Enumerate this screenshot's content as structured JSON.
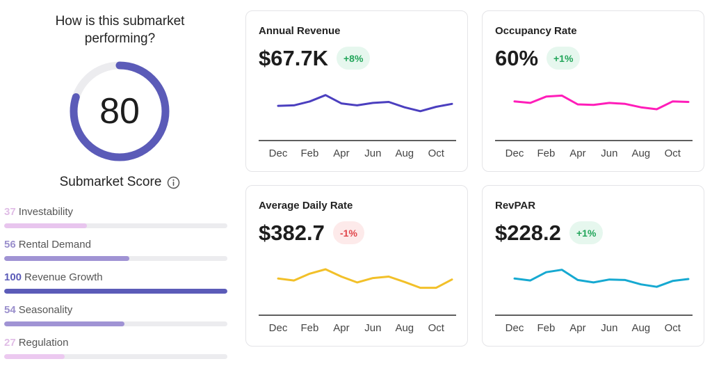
{
  "score_panel": {
    "question": "How is this submarket performing?",
    "score": 80,
    "score_max": 100,
    "score_color": "#5b5bb8",
    "label": "Submarket Score",
    "info_icon": "info-icon",
    "metrics": [
      {
        "value": "37",
        "label": "Investability",
        "fraction": 0.37,
        "color": "#e8c5ee",
        "num_color": "#e0bde6"
      },
      {
        "value": "56",
        "label": "Rental Demand",
        "fraction": 0.56,
        "color": "#a093d4",
        "num_color": "#9a8fcc"
      },
      {
        "value": "100",
        "label": "Revenue Growth",
        "fraction": 1.0,
        "color": "#5b5bb8",
        "num_color": "#5b5bb8"
      },
      {
        "value": "54",
        "label": "Seasonality",
        "fraction": 0.54,
        "color": "#a093d4",
        "num_color": "#9a8fcc"
      },
      {
        "value": "27",
        "label": "Regulation",
        "fraction": 0.27,
        "color": "#ecc9f0",
        "num_color": "#e0bde6"
      }
    ]
  },
  "cards": [
    {
      "title": "Annual Revenue",
      "value": "$67.7K",
      "change": "+8%",
      "trend": "positive",
      "chart_data": {
        "type": "line",
        "color": "#4b3fbf",
        "x_ticks": [
          "Dec",
          "Feb",
          "Apr",
          "Jun",
          "Aug",
          "Oct"
        ],
        "values": [
          57,
          58,
          66,
          79,
          62,
          58,
          63,
          65,
          54,
          46,
          55,
          61
        ],
        "ylim": [
          0,
          100
        ]
      }
    },
    {
      "title": "Occupancy Rate",
      "value": "60%",
      "change": "+1%",
      "trend": "positive",
      "chart_data": {
        "type": "line",
        "color": "#ff1db9",
        "x_ticks": [
          "Dec",
          "Feb",
          "Apr",
          "Jun",
          "Aug",
          "Oct"
        ],
        "values": [
          66,
          63,
          76,
          78,
          60,
          59,
          63,
          61,
          54,
          50,
          66,
          65
        ],
        "ylim": [
          0,
          100
        ]
      }
    },
    {
      "title": "Average Daily Rate",
      "value": "$382.7",
      "change": "-1%",
      "trend": "negative",
      "chart_data": {
        "type": "line",
        "color": "#f2c029",
        "x_ticks": [
          "Dec",
          "Feb",
          "Apr",
          "Jun",
          "Aug",
          "Oct"
        ],
        "values": [
          61,
          57,
          71,
          80,
          65,
          53,
          62,
          65,
          54,
          42,
          42,
          59
        ],
        "ylim": [
          0,
          100
        ]
      }
    },
    {
      "title": "RevPAR",
      "value": "$228.2",
      "change": "+1%",
      "trend": "positive",
      "chart_data": {
        "type": "line",
        "color": "#16a9d1",
        "x_ticks": [
          "Dec",
          "Feb",
          "Apr",
          "Jun",
          "Aug",
          "Oct"
        ],
        "values": [
          61,
          57,
          74,
          79,
          58,
          53,
          59,
          58,
          49,
          44,
          56,
          60
        ],
        "ylim": [
          0,
          100
        ]
      }
    }
  ]
}
